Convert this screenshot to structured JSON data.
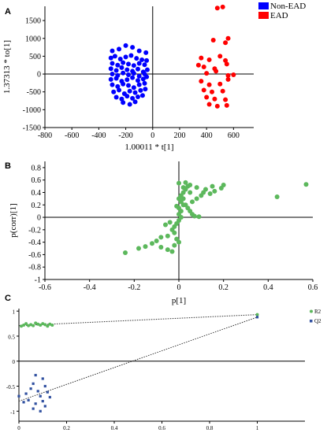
{
  "figure": {
    "panels": [
      {
        "letter": "A",
        "chart_data": {
          "type": "scatter",
          "xlabel": "1.00011 * t[1]",
          "ylabel": "1.37313 * to[1]",
          "xlim": [
            -800,
            750
          ],
          "ylim": [
            -1500,
            1900
          ],
          "xticks": [
            -800,
            -600,
            -400,
            -200,
            0,
            200,
            400,
            600
          ],
          "yticks": [
            -1500,
            -1000,
            -500,
            0,
            500,
            1000,
            1500
          ],
          "legend": "top-right",
          "series": [
            {
              "name": "Non-EAD",
              "color": "#0000ff",
              "points": [
                [
                  -300,
                  650
                ],
                [
                  -250,
                  700
                ],
                [
                  -200,
                  800
                ],
                [
                  -150,
                  750
                ],
                [
                  -100,
                  650
                ],
                [
                  -50,
                  600
                ],
                [
                  -310,
                  450
                ],
                [
                  -280,
                  500
                ],
                [
                  -240,
                  420
                ],
                [
                  -200,
                  480
                ],
                [
                  -160,
                  520
                ],
                [
                  -120,
                  440
                ],
                [
                  -80,
                  400
                ],
                [
                  -45,
                  380
                ],
                [
                  -300,
                  300
                ],
                [
                  -260,
                  250
                ],
                [
                  -220,
                  320
                ],
                [
                  -180,
                  280
                ],
                [
                  -140,
                  240
                ],
                [
                  -100,
                  300
                ],
                [
                  -60,
                  260
                ],
                [
                  -310,
                  150
                ],
                [
                  -270,
                  100
                ],
                [
                  -230,
                  180
                ],
                [
                  -190,
                  120
                ],
                [
                  -150,
                  80
                ],
                [
                  -110,
                  140
                ],
                [
                  -70,
                  60
                ],
                [
                  -40,
                  120
                ],
                [
                  -300,
                  0
                ],
                [
                  -260,
                  -40
                ],
                [
                  -220,
                  30
                ],
                [
                  -180,
                  -20
                ],
                [
                  -140,
                  20
                ],
                [
                  -100,
                  -60
                ],
                [
                  -60,
                  0
                ],
                [
                  -310,
                  -150
                ],
                [
                  -270,
                  -120
                ],
                [
                  -230,
                  -200
                ],
                [
                  -190,
                  -160
                ],
                [
                  -150,
                  -100
                ],
                [
                  -110,
                  -180
                ],
                [
                  -70,
                  -140
                ],
                [
                  -45,
                  -80
                ],
                [
                  -300,
                  -300
                ],
                [
                  -260,
                  -350
                ],
                [
                  -220,
                  -280
                ],
                [
                  -180,
                  -320
                ],
                [
                  -140,
                  -380
                ],
                [
                  -100,
                  -300
                ],
                [
                  -60,
                  -260
                ],
                [
                  -290,
                  -500
                ],
                [
                  -250,
                  -450
                ],
                [
                  -210,
                  -550
                ],
                [
                  -170,
                  -480
                ],
                [
                  -130,
                  -520
                ],
                [
                  -90,
                  -460
                ],
                [
                  -55,
                  -420
                ],
                [
                  -270,
                  -650
                ],
                [
                  -230,
                  -700
                ],
                [
                  -190,
                  -620
                ],
                [
                  -150,
                  -680
                ],
                [
                  -110,
                  -640
                ],
                [
                  -75,
                  -600
                ],
                [
                  -220,
                  -800
                ],
                [
                  -170,
                  -850
                ],
                [
                  -130,
                  -780
                ]
              ]
            },
            {
              "name": "EAD",
              "color": "#ff0000",
              "points": [
                [
                  480,
                  1850
                ],
                [
                  520,
                  1880
                ],
                [
                  450,
                  950
                ],
                [
                  540,
                  880
                ],
                [
                  560,
                  1000
                ],
                [
                  360,
                  450
                ],
                [
                  420,
                  400
                ],
                [
                  500,
                  500
                ],
                [
                  540,
                  380
                ],
                [
                  340,
                  250
                ],
                [
                  380,
                  200
                ],
                [
                  460,
                  150
                ],
                [
                  550,
                  280
                ],
                [
                  400,
                  20
                ],
                [
                  470,
                  80
                ],
                [
                  560,
                  -40
                ],
                [
                  600,
                  -20
                ],
                [
                  360,
                  -200
                ],
                [
                  420,
                  -300
                ],
                [
                  500,
                  -280
                ],
                [
                  560,
                  -150
                ],
                [
                  380,
                  -450
                ],
                [
                  440,
                  -500
                ],
                [
                  520,
                  -480
                ],
                [
                  400,
                  -650
                ],
                [
                  460,
                  -700
                ],
                [
                  540,
                  -720
                ],
                [
                  420,
                  -850
                ],
                [
                  480,
                  -900
                ],
                [
                  550,
                  -880
                ]
              ]
            }
          ]
        }
      },
      {
        "letter": "B",
        "chart_data": {
          "type": "scatter",
          "xlabel": "p[1]",
          "ylabel": "p(corr)[1]",
          "xlim": [
            -0.6,
            0.6
          ],
          "ylim": [
            -1,
            0.9
          ],
          "xticks": [
            -0.6,
            -0.4,
            -0.2,
            0,
            0.2,
            0.4,
            0.6
          ],
          "yticks": [
            -1,
            -0.8,
            -0.6,
            -0.4,
            -0.2,
            0,
            0.2,
            0.4,
            0.6,
            0.8
          ],
          "series": [
            {
              "color": "#5cb85c",
              "points": [
                [
                  0.57,
                  0.53
                ],
                [
                  0.44,
                  0.33
                ],
                [
                  0.2,
                  0.52
                ],
                [
                  0.19,
                  0.47
                ],
                [
                  0.15,
                  0.5
                ],
                [
                  0.12,
                  0.45
                ],
                [
                  0.1,
                  0.35
                ],
                [
                  0.08,
                  0.3
                ],
                [
                  0.06,
                  0.25
                ],
                [
                  0.05,
                  0.4
                ],
                [
                  0.04,
                  0.5
                ],
                [
                  0.03,
                  0.45
                ],
                [
                  0.02,
                  0.4
                ],
                [
                  0.01,
                  0.35
                ],
                [
                  0.0,
                  0.3
                ],
                [
                  0.01,
                  0.25
                ],
                [
                  0.02,
                  0.2
                ],
                [
                  0.0,
                  0.15
                ],
                [
                  0.01,
                  0.1
                ],
                [
                  0.0,
                  0.05
                ],
                [
                  0.02,
                  0.3
                ],
                [
                  0.03,
                  0.2
                ],
                [
                  0.04,
                  0.15
                ],
                [
                  0.05,
                  0.1
                ],
                [
                  0.06,
                  0.05
                ],
                [
                  0.07,
                  0.02
                ],
                [
                  0.09,
                  0.01
                ],
                [
                  0.01,
                  0.0
                ],
                [
                  0.0,
                  -0.05
                ],
                [
                  -0.01,
                  -0.1
                ],
                [
                  -0.02,
                  -0.15
                ],
                [
                  -0.03,
                  -0.2
                ],
                [
                  -0.02,
                  -0.25
                ],
                [
                  -0.05,
                  -0.3
                ],
                [
                  -0.08,
                  -0.32
                ],
                [
                  -0.1,
                  -0.38
                ],
                [
                  -0.12,
                  -0.42
                ],
                [
                  -0.15,
                  -0.47
                ],
                [
                  -0.18,
                  -0.5
                ],
                [
                  -0.08,
                  -0.48
                ],
                [
                  -0.05,
                  -0.52
                ],
                [
                  -0.03,
                  -0.55
                ],
                [
                  -0.24,
                  -0.57
                ],
                [
                  -0.02,
                  -0.45
                ],
                [
                  -0.01,
                  -0.35
                ],
                [
                  0.0,
                  -0.4
                ],
                [
                  -0.04,
                  -0.08
                ],
                [
                  -0.06,
                  -0.12
                ],
                [
                  0.02,
                  0.48
                ],
                [
                  0.05,
                  0.52
                ],
                [
                  0.08,
                  0.48
                ],
                [
                  0.11,
                  0.4
                ],
                [
                  0.14,
                  0.38
                ],
                [
                  0.16,
                  0.42
                ],
                [
                  0.0,
                  0.55
                ],
                [
                  0.03,
                  0.56
                ],
                [
                  -0.01,
                  0.18
                ]
              ]
            }
          ]
        }
      },
      {
        "letter": "C",
        "chart_data": {
          "type": "scatter",
          "xlim": [
            0,
            1.2
          ],
          "ylim": [
            -1.2,
            1.05
          ],
          "xticks": [
            0,
            0.2,
            0.4,
            0.6,
            0.8,
            1
          ],
          "yticks": [
            -1,
            -0.5,
            0,
            0.5,
            1
          ],
          "legend": "top-right",
          "series": [
            {
              "name": "R2",
              "color": "#5cb85c",
              "marker": "circle",
              "points": [
                [
                  1.0,
                  0.93
                ],
                [
                  0.02,
                  0.72
                ],
                [
                  0.03,
                  0.75
                ],
                [
                  0.05,
                  0.73
                ],
                [
                  0.06,
                  0.71
                ],
                [
                  0.08,
                  0.74
                ],
                [
                  0.09,
                  0.72
                ],
                [
                  0.11,
                  0.73
                ],
                [
                  0.12,
                  0.7
                ],
                [
                  0.14,
                  0.72
                ],
                [
                  0.01,
                  0.7
                ],
                [
                  0.07,
                  0.76
                ],
                [
                  0.1,
                  0.75
                ],
                [
                  0.13,
                  0.74
                ],
                [
                  0.04,
                  0.71
                ]
              ],
              "regression": [
                [
                  0,
                  0.71
                ],
                [
                  1,
                  0.93
                ]
              ]
            },
            {
              "name": "Q2",
              "color": "#3050a0",
              "marker": "square",
              "points": [
                [
                  1.0,
                  0.88
                ],
                [
                  0.07,
                  -0.28
                ],
                [
                  0.1,
                  -0.35
                ],
                [
                  0.06,
                  -0.45
                ],
                [
                  0.11,
                  -0.5
                ],
                [
                  0.05,
                  -0.55
                ],
                [
                  0.08,
                  -0.6
                ],
                [
                  0.12,
                  -0.62
                ],
                [
                  0.03,
                  -0.65
                ],
                [
                  0.09,
                  -0.7
                ],
                [
                  0.0,
                  -0.7
                ],
                [
                  0.13,
                  -0.72
                ],
                [
                  0.04,
                  -0.78
                ],
                [
                  0.1,
                  -0.8
                ],
                [
                  0.07,
                  -0.85
                ],
                [
                  0.02,
                  -0.82
                ],
                [
                  0.11,
                  -0.9
                ],
                [
                  0.06,
                  -0.95
                ],
                [
                  0.09,
                  -1.0
                ]
              ],
              "regression": [
                [
                  0,
                  -0.8
                ],
                [
                  1,
                  0.88
                ]
              ]
            }
          ]
        }
      }
    ]
  }
}
